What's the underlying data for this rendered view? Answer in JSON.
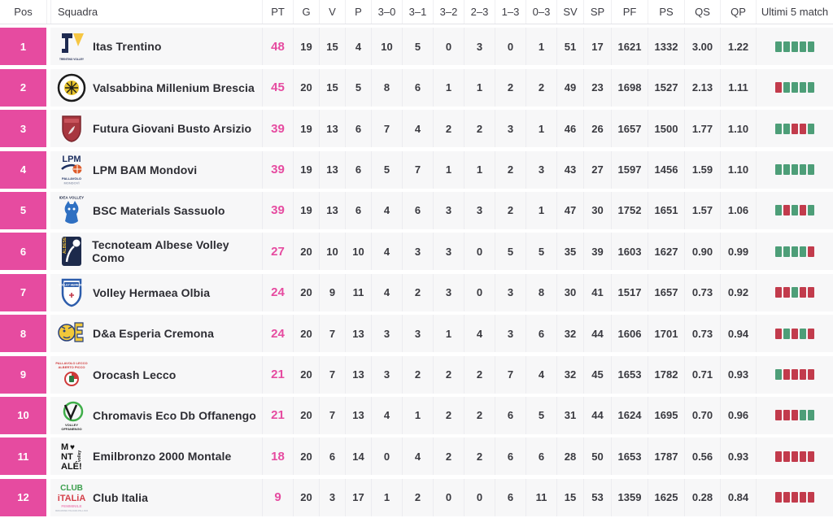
{
  "colors": {
    "accent": "#e64ba0",
    "win": "#4d9e78",
    "loss": "#c23b4c"
  },
  "columns": [
    "Pos",
    "Squadra",
    "PT",
    "G",
    "V",
    "P",
    "3–0",
    "3–1",
    "3–2",
    "2–3",
    "1–3",
    "0–3",
    "SV",
    "SP",
    "PF",
    "PS",
    "QS",
    "QP",
    "Ultimi 5 match"
  ],
  "rows": [
    {
      "pos": "1",
      "team": "Itas Trentino",
      "logo": "itas-trentino-logo",
      "pt": "48",
      "g": "19",
      "v": "15",
      "p": "4",
      "s30": "10",
      "s31": "5",
      "s32": "0",
      "s23": "3",
      "s13": "0",
      "s03": "1",
      "sv": "51",
      "sp": "17",
      "pf": "1621",
      "ps": "1332",
      "qs": "3.00",
      "qp": "1.22",
      "last5": [
        "W",
        "W",
        "W",
        "W",
        "W"
      ]
    },
    {
      "pos": "2",
      "team": "Valsabbina Millenium Brescia",
      "logo": "valsabbina-brescia-logo",
      "pt": "45",
      "g": "20",
      "v": "15",
      "p": "5",
      "s30": "8",
      "s31": "6",
      "s32": "1",
      "s23": "1",
      "s13": "2",
      "s03": "2",
      "sv": "49",
      "sp": "23",
      "pf": "1698",
      "ps": "1527",
      "qs": "2.13",
      "qp": "1.11",
      "last5": [
        "L",
        "W",
        "W",
        "W",
        "W"
      ]
    },
    {
      "pos": "3",
      "team": "Futura Giovani Busto Arsizio",
      "logo": "futura-busto-arsizio-logo",
      "pt": "39",
      "g": "19",
      "v": "13",
      "p": "6",
      "s30": "7",
      "s31": "4",
      "s32": "2",
      "s23": "2",
      "s13": "3",
      "s03": "1",
      "sv": "46",
      "sp": "26",
      "pf": "1657",
      "ps": "1500",
      "qs": "1.77",
      "qp": "1.10",
      "last5": [
        "W",
        "W",
        "L",
        "L",
        "W"
      ]
    },
    {
      "pos": "4",
      "team": "LPM BAM Mondovi",
      "logo": "lpm-bam-mondovi-logo",
      "pt": "39",
      "g": "19",
      "v": "13",
      "p": "6",
      "s30": "5",
      "s31": "7",
      "s32": "1",
      "s23": "1",
      "s13": "2",
      "s03": "3",
      "sv": "43",
      "sp": "27",
      "pf": "1597",
      "ps": "1456",
      "qs": "1.59",
      "qp": "1.10",
      "last5": [
        "W",
        "W",
        "W",
        "W",
        "W"
      ]
    },
    {
      "pos": "5",
      "team": "BSC Materials Sassuolo",
      "logo": "bsc-materials-sassuolo-logo",
      "pt": "39",
      "g": "19",
      "v": "13",
      "p": "6",
      "s30": "4",
      "s31": "6",
      "s32": "3",
      "s23": "3",
      "s13": "2",
      "s03": "1",
      "sv": "47",
      "sp": "30",
      "pf": "1752",
      "ps": "1651",
      "qs": "1.57",
      "qp": "1.06",
      "last5": [
        "W",
        "L",
        "W",
        "L",
        "W"
      ]
    },
    {
      "pos": "6",
      "team": "Tecnoteam Albese Volley Como",
      "logo": "tecnoteam-albese-como-logo",
      "pt": "27",
      "g": "20",
      "v": "10",
      "p": "10",
      "s30": "4",
      "s31": "3",
      "s32": "3",
      "s23": "0",
      "s13": "5",
      "s03": "5",
      "sv": "35",
      "sp": "39",
      "pf": "1603",
      "ps": "1627",
      "qs": "0.90",
      "qp": "0.99",
      "last5": [
        "W",
        "W",
        "W",
        "W",
        "L"
      ]
    },
    {
      "pos": "7",
      "team": "Volley Hermaea Olbia",
      "logo": "volley-hermaea-olbia-logo",
      "pt": "24",
      "g": "20",
      "v": "9",
      "p": "11",
      "s30": "4",
      "s31": "2",
      "s32": "3",
      "s23": "0",
      "s13": "3",
      "s03": "8",
      "sv": "30",
      "sp": "41",
      "pf": "1517",
      "ps": "1657",
      "qs": "0.73",
      "qp": "0.92",
      "last5": [
        "L",
        "L",
        "W",
        "L",
        "L"
      ]
    },
    {
      "pos": "8",
      "team": "D&a Esperia Cremona",
      "logo": "esperia-cremona-logo",
      "pt": "24",
      "g": "20",
      "v": "7",
      "p": "13",
      "s30": "3",
      "s31": "3",
      "s32": "1",
      "s23": "4",
      "s13": "3",
      "s03": "6",
      "sv": "32",
      "sp": "44",
      "pf": "1606",
      "ps": "1701",
      "qs": "0.73",
      "qp": "0.94",
      "last5": [
        "L",
        "W",
        "L",
        "W",
        "L"
      ]
    },
    {
      "pos": "9",
      "team": "Orocash Lecco",
      "logo": "orocash-lecco-logo",
      "pt": "21",
      "g": "20",
      "v": "7",
      "p": "13",
      "s30": "3",
      "s31": "2",
      "s32": "2",
      "s23": "2",
      "s13": "7",
      "s03": "4",
      "sv": "32",
      "sp": "45",
      "pf": "1653",
      "ps": "1782",
      "qs": "0.71",
      "qp": "0.93",
      "last5": [
        "W",
        "L",
        "L",
        "L",
        "L"
      ]
    },
    {
      "pos": "10",
      "team": "Chromavis Eco Db Offanengo",
      "logo": "chromavis-offanengo-logo",
      "pt": "21",
      "g": "20",
      "v": "7",
      "p": "13",
      "s30": "4",
      "s31": "1",
      "s32": "2",
      "s23": "2",
      "s13": "6",
      "s03": "5",
      "sv": "31",
      "sp": "44",
      "pf": "1624",
      "ps": "1695",
      "qs": "0.70",
      "qp": "0.96",
      "last5": [
        "L",
        "L",
        "L",
        "W",
        "W"
      ]
    },
    {
      "pos": "11",
      "team": "Emilbronzo 2000 Montale",
      "logo": "emilbronzo-montale-logo",
      "pt": "18",
      "g": "20",
      "v": "6",
      "p": "14",
      "s30": "0",
      "s31": "4",
      "s32": "2",
      "s23": "2",
      "s13": "6",
      "s03": "6",
      "sv": "28",
      "sp": "50",
      "pf": "1653",
      "ps": "1787",
      "qs": "0.56",
      "qp": "0.93",
      "last5": [
        "L",
        "L",
        "L",
        "L",
        "L"
      ]
    },
    {
      "pos": "12",
      "team": "Club Italia",
      "logo": "club-italia-logo",
      "pt": "9",
      "g": "20",
      "v": "3",
      "p": "17",
      "s30": "1",
      "s31": "2",
      "s32": "0",
      "s23": "0",
      "s13": "6",
      "s03": "11",
      "sv": "15",
      "sp": "53",
      "pf": "1359",
      "ps": "1625",
      "qs": "0.28",
      "qp": "0.84",
      "last5": [
        "L",
        "L",
        "L",
        "L",
        "L"
      ]
    }
  ]
}
